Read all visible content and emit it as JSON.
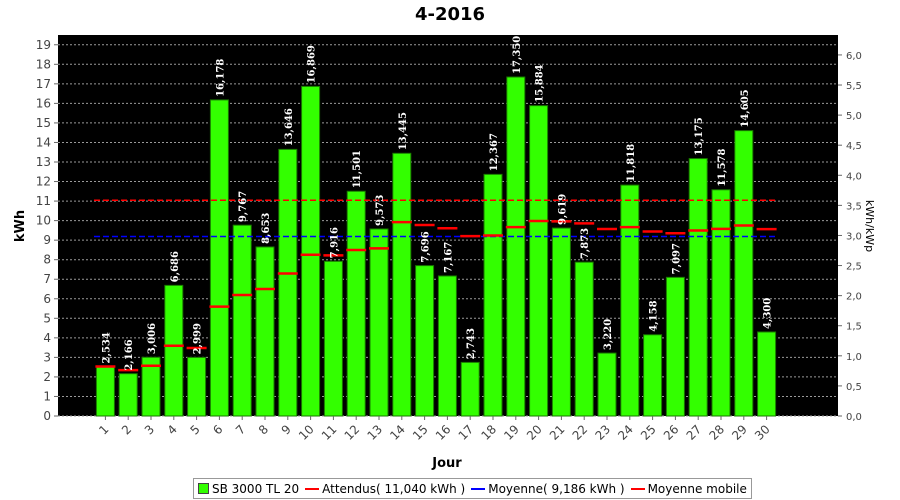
{
  "colors": {
    "plot_background": "#000000",
    "bar_fill": "#33ff00",
    "bar_stroke": "#1a7a00",
    "expected_line": "#ff0000",
    "average_line": "#0000ff",
    "moving_average": "#ff0000",
    "grid": "#9a9a9a"
  },
  "legend": {
    "items": [
      {
        "label": "SB 3000 TL 20",
        "kind": "box",
        "color": "#33ff00"
      },
      {
        "label": "Attendus( 11,040 kWh )",
        "kind": "line",
        "color": "#ff0000"
      },
      {
        "label": "Moyenne( 9,186 kWh )",
        "kind": "line",
        "color": "#0000ff"
      },
      {
        "label": "Moyenne mobile",
        "kind": "line",
        "color": "#ff0000"
      }
    ]
  },
  "chart_data": {
    "type": "bar",
    "title": "4-2016",
    "xlabel": "Jour",
    "ylabel": "kWh",
    "y2label": "kWh/kWp",
    "grid": true,
    "legend_position": "bottom",
    "ylim": [
      0,
      19.5
    ],
    "yticks": [
      "0",
      "1",
      "2",
      "3",
      "4",
      "5",
      "6",
      "7",
      "8",
      "9",
      "10",
      "11",
      "12",
      "13",
      "14",
      "15",
      "16",
      "17",
      "18",
      "19"
    ],
    "y2ticks": [
      "0,0",
      "0,5",
      "1,0",
      "1,5",
      "2,0",
      "2,5",
      "3,0",
      "3,5",
      "4,0",
      "4,5",
      "5,0",
      "5,5",
      "6,0"
    ],
    "y2tick_values": [
      0,
      0.5,
      1,
      1.5,
      2,
      2.5,
      3,
      3.5,
      4,
      4.5,
      5,
      5.5,
      6
    ],
    "y2_scale_kwh_per_unit": 3.08,
    "categories": [
      "1",
      "2",
      "3",
      "4",
      "5",
      "6",
      "7",
      "8",
      "9",
      "10",
      "11",
      "12",
      "13",
      "14",
      "15",
      "16",
      "17",
      "18",
      "19",
      "20",
      "21",
      "22",
      "23",
      "24",
      "25",
      "26",
      "27",
      "28",
      "29",
      "30"
    ],
    "series": [
      {
        "name": "SB 3000 TL 20",
        "values": [
          2.534,
          2.166,
          3.006,
          6.686,
          2.999,
          16.178,
          9.767,
          8.653,
          13.646,
          16.869,
          7.916,
          11.501,
          9.573,
          13.445,
          7.696,
          7.167,
          2.743,
          12.367,
          17.35,
          15.884,
          9.619,
          7.873,
          3.22,
          11.818,
          4.158,
          7.097,
          13.175,
          11.578,
          14.605,
          4.3
        ],
        "data_labels": [
          "2,534",
          "2,166",
          "3,006",
          "6,686",
          "2,999",
          "16,178",
          "9,767",
          "8,653",
          "13,646",
          "16,869",
          "7,916",
          "11,501",
          "9,573",
          "13,445",
          "7,696",
          "7,167",
          "2,743",
          "12,367",
          "17,350",
          "15,884",
          "9,619",
          "7,873",
          "3,220",
          "11,818",
          "4,158",
          "7,097",
          "13,175",
          "11,578",
          "14,605",
          "4,300"
        ]
      },
      {
        "name": "Attendus( 11,040 kWh )",
        "constant": 11.04
      },
      {
        "name": "Moyenne( 9,186 kWh )",
        "constant": 9.186
      },
      {
        "name": "Moyenne mobile",
        "values": [
          2.534,
          2.35,
          2.569,
          3.598,
          3.478,
          5.595,
          6.191,
          6.498,
          7.293,
          8.251,
          8.221,
          8.494,
          8.578,
          9.925,
          9.777,
          9.612,
          9.208,
          9.241,
          9.666,
          9.978,
          9.96,
          9.86,
          9.57,
          9.665,
          9.445,
          9.355,
          9.496,
          9.575,
          9.749,
          9.567
        ]
      }
    ]
  }
}
